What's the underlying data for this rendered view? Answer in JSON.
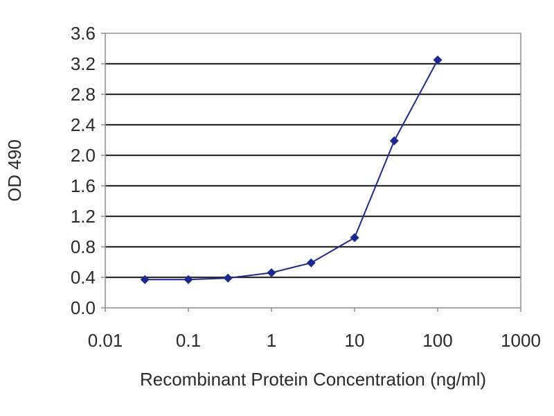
{
  "chart_data": {
    "type": "line",
    "title": "",
    "xlabel": "Recombinant Protein Concentration (ng/ml)",
    "ylabel": "OD 490",
    "x_scale": "log",
    "xlim": [
      0.01,
      1000
    ],
    "ylim": [
      0.0,
      3.6
    ],
    "x_ticks": [
      0.01,
      0.1,
      1,
      10,
      100,
      1000
    ],
    "x_tick_labels": [
      "0.01",
      "0.1",
      "1",
      "10",
      "100",
      "1000"
    ],
    "y_ticks": [
      0.0,
      0.4,
      0.8,
      1.2,
      1.6,
      2.0,
      2.4,
      2.8,
      3.2,
      3.6
    ],
    "y_tick_labels": [
      "0.0",
      "0.4",
      "0.8",
      "1.2",
      "1.6",
      "2.0",
      "2.4",
      "2.8",
      "3.2",
      "3.6"
    ],
    "grid": "horizontal",
    "legend": "none",
    "series": [
      {
        "x": [
          0.03,
          0.1,
          0.3,
          1,
          3,
          10,
          30,
          100
        ],
        "y": [
          0.37,
          0.37,
          0.39,
          0.46,
          0.59,
          0.92,
          2.19,
          3.25
        ],
        "color": "#1c2a8c",
        "marker": "diamond"
      }
    ]
  }
}
